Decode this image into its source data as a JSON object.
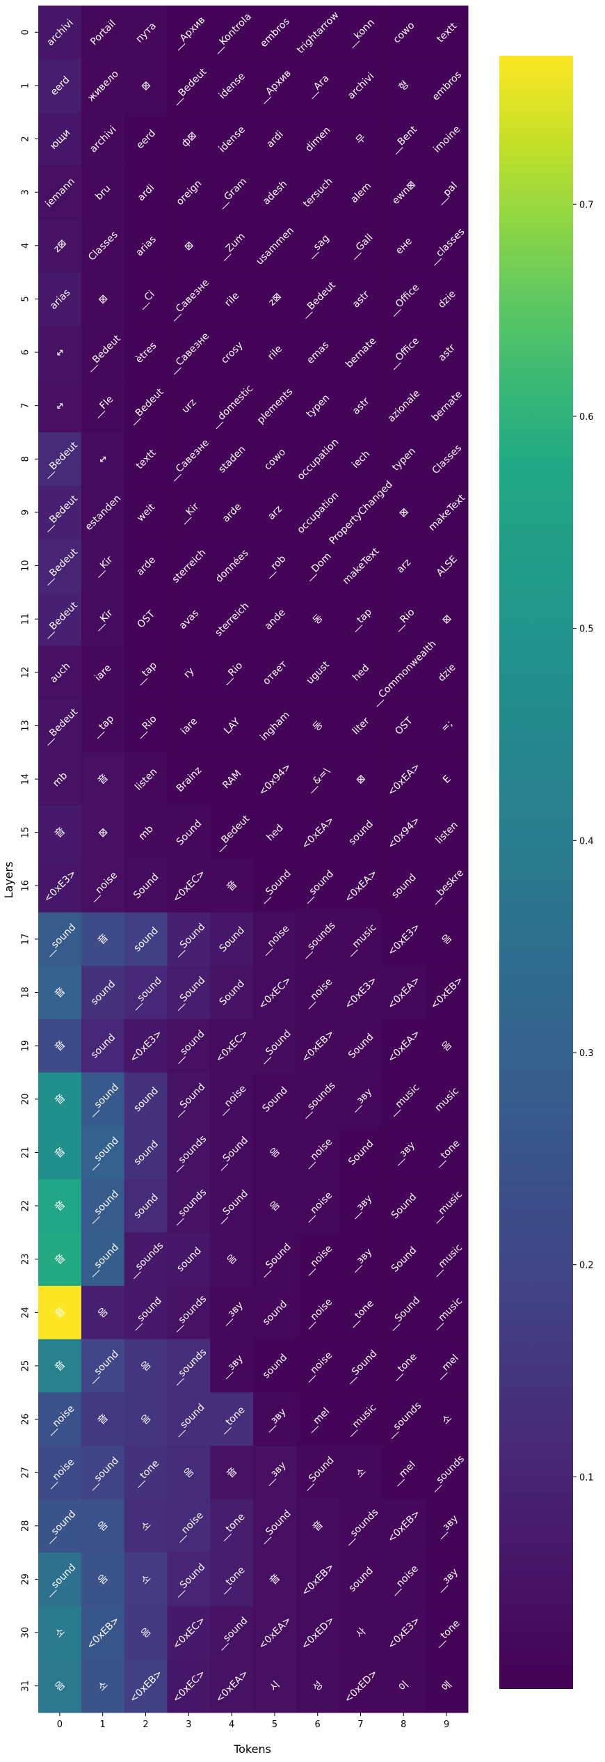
{
  "chart_data": {
    "type": "heatmap",
    "xlabel": "Tokens",
    "ylabel": "Layers",
    "x": [
      "0",
      "1",
      "2",
      "3",
      "4",
      "5",
      "6",
      "7",
      "8",
      "9"
    ],
    "y": [
      "0",
      "1",
      "2",
      "3",
      "4",
      "5",
      "6",
      "7",
      "8",
      "9",
      "10",
      "11",
      "12",
      "13",
      "14",
      "15",
      "16",
      "17",
      "18",
      "19",
      "20",
      "21",
      "22",
      "23",
      "24",
      "25",
      "26",
      "27",
      "28",
      "29",
      "30",
      "31"
    ],
    "colormap": "viridis",
    "colorbar": {
      "min": 0.0,
      "max": 0.77,
      "ticks": [
        0.1,
        0.2,
        0.3,
        0.4,
        0.5,
        0.6,
        0.7
      ]
    },
    "labels": [
      [
        "archivi",
        "Portail",
        "пута",
        "__Архив",
        "__Kontrola",
        "embros",
        "trightarrow",
        "__konn",
        "cowo",
        "textt"
      ],
      [
        "eerd",
        "живело",
        "⊠",
        "__Bedeut",
        "idense",
        "__Архив",
        "__Ara",
        "archivi",
        "형",
        "embros"
      ],
      [
        "ющи",
        "archivi",
        "eerd",
        "ф⊠",
        "idense",
        "ardi",
        "dimen",
        "무",
        "__Bent",
        "imoine"
      ],
      [
        "iemann",
        "bru",
        "ardi",
        "oreign",
        "__Gram",
        "adesh",
        "tersuch",
        "alem",
        "ewn⊠",
        "__pal"
      ],
      [
        "z⊠",
        "Classes",
        "arias",
        "⊠",
        "__Zum",
        "usammen",
        "__sag",
        "__Gall",
        "ене",
        "__classes"
      ],
      [
        "arias",
        "⊠",
        "__Ci",
        "__Cавезне",
        "rile",
        "z⊠",
        "__Bedeut",
        "astr",
        "__Office",
        "dzie"
      ],
      [
        "↔",
        "__Bedeut",
        "ètres",
        "__Cавезне",
        "crosy",
        "rile",
        "emas",
        "bernate",
        "__Office",
        "astr"
      ],
      [
        "↔",
        "__Fle",
        "__Bedeut",
        "urz",
        "__domestic",
        "plements",
        "typen",
        "astr",
        "azionale",
        "bernate"
      ],
      [
        "__Bedeut",
        "↔",
        "textt",
        "__Cавезне",
        "staden",
        "cowo",
        "occupation",
        "iech",
        "typen",
        "Classes"
      ],
      [
        "__Bedeut",
        "estanden",
        "weit",
        "__Kir",
        "arde",
        "arz",
        "occupation",
        "PropertyChanged",
        "⊠",
        "makeText"
      ],
      [
        "__Bedeut",
        "__Kir",
        "arde",
        "sterreich",
        "données",
        "__rob",
        "__Dom",
        "makeText",
        "arz",
        "ALSE"
      ],
      [
        "__Bedeut",
        "__Kir",
        "OST",
        "avas",
        "sterreich",
        "ande",
        "동",
        "__tap",
        "__Rio",
        "⊠"
      ],
      [
        "auch",
        "iare",
        "__tap",
        "ry",
        "__Rio",
        "ответ",
        "ugust",
        "hed",
        "__Commonwealth",
        "dzie"
      ],
      [
        "__Bedeut",
        "__tap",
        "__Rio",
        "iare",
        "LAY",
        "ingham",
        "동",
        "liter",
        "OST",
        "=;"
      ],
      [
        "mb",
        "音",
        "listen",
        "Brainz",
        "RAM",
        "<0x94>",
        "__&=\\",
        "⊠",
        "<0xEA>",
        "E"
      ],
      [
        "音",
        "⊠",
        "mb",
        "Sound",
        "__Bedeut",
        "hed",
        "<0xEA>",
        "sound",
        "<0x94>",
        "listen"
      ],
      [
        "<0xE3>",
        "__noise",
        "Sound",
        "<0xEC>",
        "音",
        "__Sound",
        "__sound",
        "<0xEA>",
        "sound",
        "__beskre"
      ],
      [
        "__sound",
        "音",
        "sound",
        "__Sound",
        "Sound",
        "__noise",
        "__sounds",
        "__music",
        "<0xE3>",
        "음"
      ],
      [
        "音",
        "sound",
        "__sound",
        "__Sound",
        "Sound",
        "<0xEC>",
        "__noise",
        "<0xE3>",
        "<0xEA>",
        "<0xEB>"
      ],
      [
        "音",
        "sound",
        "<0xE3>",
        "__sound",
        "<0xEC>",
        "__Sound",
        "<0xEB>",
        "Sound",
        "<0xEA>",
        "음"
      ],
      [
        "音",
        "__sound",
        "sound",
        "__Sound",
        "__noise",
        "Sound",
        "__sounds",
        "__зву",
        "__music",
        "music"
      ],
      [
        "音",
        "__sound",
        "sound",
        "__sounds",
        "__Sound",
        "음",
        "__noise",
        "Sound",
        "__зву",
        "__tone"
      ],
      [
        "音",
        "__sound",
        "sound",
        "__sounds",
        "__Sound",
        "음",
        "__noise",
        "__зву",
        "Sound",
        "__music"
      ],
      [
        "音",
        "__sound",
        "__sounds",
        "sound",
        "음",
        "__Sound",
        "__noise",
        "__зву",
        "Sound",
        "__music"
      ],
      [
        "音",
        "음",
        "__sound",
        "__sounds",
        "__зву",
        "sound",
        "__noise",
        "__tone",
        "__Sound",
        "__music"
      ],
      [
        "音",
        "__sound",
        "음",
        "__sounds",
        "__зву",
        "sound",
        "__noise",
        "__Sound",
        "__tone",
        "__mel"
      ],
      [
        "__noise",
        "音",
        "음",
        "__sound",
        "__tone",
        "__зву",
        "__mel",
        "__music",
        "__sounds",
        "소"
      ],
      [
        "__noise",
        "__sound",
        "__tone",
        "음",
        "音",
        "__зву",
        "__Sound",
        "소",
        "__mel",
        "__sounds"
      ],
      [
        "__sound",
        "음",
        "소",
        "__noise",
        "__tone",
        "__Sound",
        "音",
        "__sounds",
        "<0xEB>",
        "__зву"
      ],
      [
        "__sound",
        "음",
        "소",
        "__Sound",
        "__tone",
        "音",
        "<0xEB>",
        "sound",
        "__noise",
        "__зву"
      ],
      [
        "소",
        "<0xEB>",
        "음",
        "<0xEC>",
        "__sound",
        "<0xEA>",
        "<0xED>",
        "사",
        "<0xE3>",
        "__tone"
      ],
      [
        "음",
        "소",
        "<0xEB>",
        "<0xEC>",
        "<0xEA>",
        "시",
        "성",
        "<0xED>",
        "이",
        "에"
      ]
    ],
    "values": [
      [
        0.06,
        0.02,
        0.02,
        0.01,
        0.01,
        0.01,
        0.01,
        0.01,
        0.01,
        0.01
      ],
      [
        0.08,
        0.02,
        0.02,
        0.01,
        0.01,
        0.01,
        0.01,
        0.01,
        0.01,
        0.01
      ],
      [
        0.06,
        0.02,
        0.01,
        0.01,
        0.01,
        0.01,
        0.01,
        0.01,
        0.01,
        0.01
      ],
      [
        0.04,
        0.02,
        0.01,
        0.01,
        0.01,
        0.01,
        0.01,
        0.01,
        0.01,
        0.01
      ],
      [
        0.05,
        0.02,
        0.01,
        0.01,
        0.01,
        0.01,
        0.01,
        0.01,
        0.01,
        0.01
      ],
      [
        0.07,
        0.02,
        0.01,
        0.01,
        0.01,
        0.01,
        0.01,
        0.01,
        0.01,
        0.01
      ],
      [
        0.05,
        0.02,
        0.01,
        0.01,
        0.01,
        0.01,
        0.01,
        0.01,
        0.01,
        0.01
      ],
      [
        0.04,
        0.02,
        0.01,
        0.01,
        0.01,
        0.01,
        0.01,
        0.01,
        0.01,
        0.01
      ],
      [
        0.12,
        0.03,
        0.01,
        0.01,
        0.01,
        0.01,
        0.01,
        0.01,
        0.01,
        0.01
      ],
      [
        0.09,
        0.03,
        0.01,
        0.01,
        0.01,
        0.01,
        0.01,
        0.01,
        0.01,
        0.01
      ],
      [
        0.1,
        0.03,
        0.01,
        0.01,
        0.01,
        0.01,
        0.01,
        0.01,
        0.01,
        0.01
      ],
      [
        0.09,
        0.03,
        0.01,
        0.01,
        0.01,
        0.01,
        0.01,
        0.01,
        0.01,
        0.01
      ],
      [
        0.04,
        0.02,
        0.01,
        0.01,
        0.01,
        0.01,
        0.01,
        0.01,
        0.01,
        0.01
      ],
      [
        0.05,
        0.02,
        0.01,
        0.01,
        0.01,
        0.01,
        0.01,
        0.01,
        0.01,
        0.01
      ],
      [
        0.05,
        0.04,
        0.02,
        0.01,
        0.01,
        0.01,
        0.01,
        0.01,
        0.01,
        0.01
      ],
      [
        0.07,
        0.04,
        0.02,
        0.02,
        0.01,
        0.01,
        0.01,
        0.01,
        0.01,
        0.01
      ],
      [
        0.06,
        0.04,
        0.03,
        0.02,
        0.02,
        0.01,
        0.01,
        0.01,
        0.01,
        0.01
      ],
      [
        0.28,
        0.22,
        0.18,
        0.09,
        0.06,
        0.03,
        0.02,
        0.02,
        0.01,
        0.01
      ],
      [
        0.3,
        0.14,
        0.11,
        0.08,
        0.05,
        0.03,
        0.02,
        0.02,
        0.02,
        0.01
      ],
      [
        0.22,
        0.11,
        0.06,
        0.04,
        0.03,
        0.03,
        0.02,
        0.02,
        0.01,
        0.01
      ],
      [
        0.48,
        0.27,
        0.14,
        0.05,
        0.03,
        0.02,
        0.02,
        0.02,
        0.01,
        0.01
      ],
      [
        0.48,
        0.3,
        0.14,
        0.05,
        0.03,
        0.02,
        0.02,
        0.01,
        0.01,
        0.01
      ],
      [
        0.56,
        0.28,
        0.12,
        0.05,
        0.03,
        0.02,
        0.02,
        0.01,
        0.01,
        0.01
      ],
      [
        0.58,
        0.29,
        0.07,
        0.06,
        0.03,
        0.02,
        0.01,
        0.01,
        0.01,
        0.01
      ],
      [
        0.77,
        0.09,
        0.07,
        0.05,
        0.02,
        0.02,
        0.01,
        0.01,
        0.01,
        0.01
      ],
      [
        0.42,
        0.2,
        0.15,
        0.13,
        0.02,
        0.01,
        0.01,
        0.01,
        0.01,
        0.01
      ],
      [
        0.24,
        0.16,
        0.15,
        0.13,
        0.13,
        0.02,
        0.01,
        0.01,
        0.01,
        0.01
      ],
      [
        0.22,
        0.19,
        0.14,
        0.12,
        0.05,
        0.04,
        0.02,
        0.02,
        0.01,
        0.01
      ],
      [
        0.25,
        0.24,
        0.13,
        0.12,
        0.08,
        0.04,
        0.03,
        0.02,
        0.02,
        0.01
      ],
      [
        0.36,
        0.25,
        0.17,
        0.1,
        0.08,
        0.04,
        0.03,
        0.02,
        0.02,
        0.01
      ],
      [
        0.39,
        0.26,
        0.16,
        0.07,
        0.05,
        0.04,
        0.03,
        0.02,
        0.02,
        0.01
      ],
      [
        0.38,
        0.25,
        0.18,
        0.06,
        0.05,
        0.04,
        0.03,
        0.02,
        0.02,
        0.01
      ]
    ]
  }
}
